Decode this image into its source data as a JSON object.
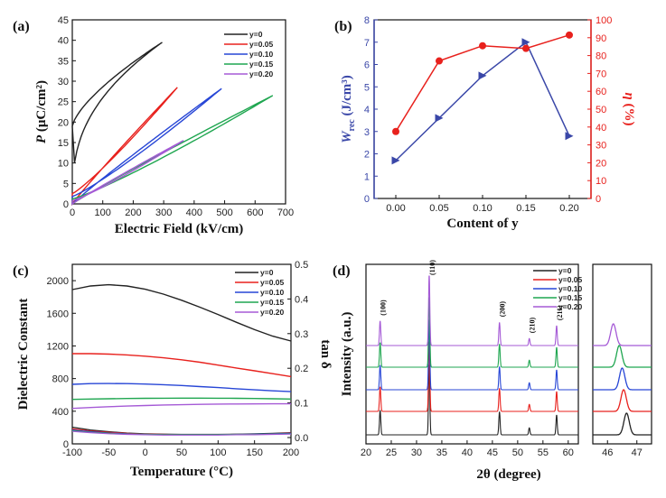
{
  "colors": {
    "black": "#222222",
    "red": "#e8211d",
    "blue": "#2746d6",
    "green": "#1fa650",
    "purple": "#a55ad6",
    "navy": "#3a47a8"
  },
  "chart_data": [
    {
      "panel": "(a)",
      "type": "line",
      "xlabel": "Electric Field (kV/cm)",
      "ylabel_main": "P",
      "ylabel_unit": " (μC/cm²)",
      "xlim": [
        0,
        700
      ],
      "ylim": [
        0,
        45
      ],
      "xticks": [
        "0",
        "100",
        "200",
        "300",
        "400",
        "500",
        "600",
        "700"
      ],
      "yticks": [
        "0",
        "5",
        "10",
        "15",
        "20",
        "25",
        "30",
        "35",
        "40",
        "45"
      ],
      "series": [
        {
          "name": "y=0",
          "color": "black",
          "emax": 295,
          "pmax": 39.5,
          "pr": 19.0
        },
        {
          "name": "y=0.05",
          "color": "red",
          "emax": 345,
          "pmax": 28.5,
          "pr": 2.5
        },
        {
          "name": "y=0.10",
          "color": "blue",
          "emax": 490,
          "pmax": 28.2,
          "pr": 1.8
        },
        {
          "name": "y=0.15",
          "color": "green",
          "emax": 658,
          "pmax": 26.5,
          "pr": 1.2
        },
        {
          "name": "y=0.20",
          "color": "purple",
          "emax": 365,
          "pmax": 15.5,
          "pr": 0.8
        }
      ]
    },
    {
      "panel": "(b)",
      "type": "line",
      "xlabel": "Content of y",
      "categories": [
        "0.00",
        "0.05",
        "0.10",
        "0.15",
        "0.20"
      ],
      "x": [
        0.0,
        0.05,
        0.1,
        0.15,
        0.2
      ],
      "ylabel_left_main": "W",
      "ylabel_left_sub": "rec",
      "ylabel_left_unit": " (J/cm³)",
      "ylabel_right_main": "η",
      "ylabel_right_unit": " (%)",
      "ylim_left": [
        0,
        8
      ],
      "ylim_right": [
        0,
        100
      ],
      "yticks_left": [
        "0",
        "1",
        "2",
        "3",
        "4",
        "5",
        "6",
        "7",
        "8"
      ],
      "yticks_right": [
        "0",
        "10",
        "20",
        "30",
        "40",
        "50",
        "60",
        "70",
        "80",
        "90",
        "100"
      ],
      "series": [
        {
          "name": "Wrec",
          "axis": "left",
          "color": "navy",
          "values": [
            1.7,
            3.6,
            5.5,
            7.0,
            2.8
          ]
        },
        {
          "name": "eta",
          "axis": "right",
          "color": "red",
          "values": [
            37.5,
            77,
            85.5,
            84,
            91.5
          ]
        }
      ]
    },
    {
      "panel": "(c)",
      "type": "line",
      "xlabel": "Temperature (°C)",
      "ylabel_left": "Dielectric Constant",
      "ylabel_right": "tan δ",
      "xlim": [
        -100,
        200
      ],
      "ylim_left": [
        0,
        2200
      ],
      "ylim_right": [
        0,
        0.5
      ],
      "xticks": [
        "-100",
        "-50",
        "0",
        "50",
        "100",
        "150",
        "200"
      ],
      "yticks_left": [
        "0",
        "400",
        "800",
        "1200",
        "1600",
        "2000"
      ],
      "yticks_right": [
        "0.0",
        "0.1",
        "0.2",
        "0.3",
        "0.4",
        "0.5"
      ],
      "temperature": [
        -100,
        -75,
        -50,
        -25,
        0,
        25,
        50,
        75,
        100,
        125,
        150,
        175,
        200
      ],
      "series": [
        {
          "name": "y=0",
          "color": "black",
          "permittivity": [
            1890,
            1935,
            1950,
            1935,
            1895,
            1835,
            1760,
            1675,
            1585,
            1490,
            1400,
            1320,
            1260
          ],
          "tan_delta": [
            0.03,
            0.022,
            0.017,
            0.013,
            0.011,
            0.01,
            0.009,
            0.009,
            0.009,
            0.01,
            0.011,
            0.012,
            0.014
          ]
        },
        {
          "name": "y=0.05",
          "color": "red",
          "permittivity": [
            1105,
            1105,
            1100,
            1090,
            1075,
            1055,
            1030,
            1000,
            965,
            930,
            895,
            860,
            825
          ],
          "tan_delta": [
            0.025,
            0.019,
            0.015,
            0.012,
            0.01,
            0.009,
            0.008,
            0.008,
            0.008,
            0.009,
            0.01,
            0.011,
            0.013
          ]
        },
        {
          "name": "y=0.10",
          "color": "blue",
          "permittivity": [
            730,
            738,
            740,
            738,
            733,
            725,
            715,
            702,
            690,
            676,
            662,
            650,
            640
          ],
          "tan_delta": [
            0.022,
            0.017,
            0.013,
            0.011,
            0.009,
            0.008,
            0.008,
            0.008,
            0.008,
            0.009,
            0.01,
            0.011,
            0.012
          ]
        },
        {
          "name": "y=0.15",
          "color": "green",
          "permittivity": [
            545,
            550,
            553,
            556,
            558,
            559,
            560,
            560,
            559,
            558,
            556,
            553,
            550
          ],
          "tan_delta": [
            0.02,
            0.015,
            0.012,
            0.01,
            0.009,
            0.008,
            0.008,
            0.008,
            0.008,
            0.009,
            0.009,
            0.01,
            0.011
          ]
        },
        {
          "name": "y=0.20",
          "color": "purple",
          "permittivity": [
            435,
            445,
            455,
            463,
            470,
            476,
            480,
            484,
            487,
            489,
            490,
            491,
            491
          ],
          "tan_delta": [
            0.018,
            0.014,
            0.011,
            0.009,
            0.008,
            0.007,
            0.007,
            0.007,
            0.007,
            0.008,
            0.008,
            0.009,
            0.01
          ]
        }
      ]
    },
    {
      "panel": "(d)",
      "type": "line",
      "xlabel": "2θ (degree)",
      "ylabel": "Intensity (a.u.)",
      "xlim_main": [
        20,
        62
      ],
      "xlim_inset": [
        45.5,
        47.5
      ],
      "xticks_main": [
        "20",
        "25",
        "30",
        "35",
        "40",
        "45",
        "50",
        "55",
        "60"
      ],
      "xticks_inset": [
        "46",
        "47"
      ],
      "peaks": [
        {
          "label": "(100)",
          "pos": 22.8,
          "height": 0.35
        },
        {
          "label": "(110)",
          "pos": 32.5,
          "height": 1.0
        },
        {
          "label": "(200)",
          "pos": 46.4,
          "height": 0.33
        },
        {
          "label": "(210)",
          "pos": 52.3,
          "height": 0.1
        },
        {
          "label": "(211)",
          "pos": 57.7,
          "height": 0.28
        }
      ],
      "series": [
        {
          "name": "y=0",
          "color": "black",
          "inset_peak": 46.65
        },
        {
          "name": "y=0.05",
          "color": "red",
          "inset_peak": 46.55
        },
        {
          "name": "y=0.10",
          "color": "blue",
          "inset_peak": 46.5
        },
        {
          "name": "y=0.15",
          "color": "green",
          "inset_peak": 46.4
        },
        {
          "name": "y=0.20",
          "color": "purple",
          "inset_peak": 46.2
        }
      ]
    }
  ]
}
